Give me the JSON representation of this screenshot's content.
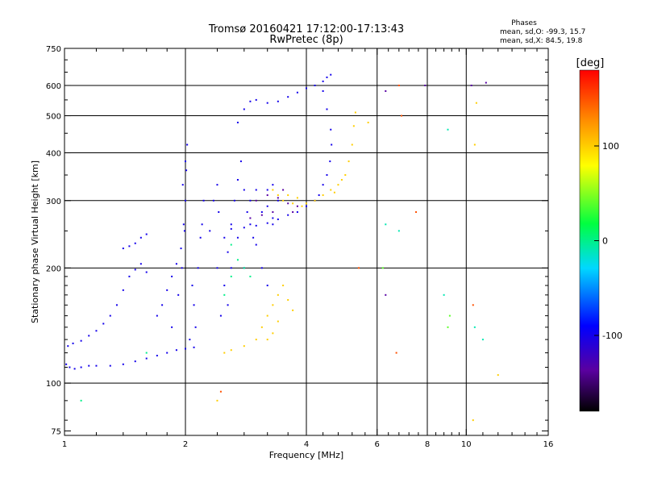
{
  "chart_data": {
    "type": "scatter",
    "title_line1": "Tromsø 20160421 17:12:00-17:13:43",
    "title_line2": "RwPretec (8p)",
    "info": {
      "heading": "Phases",
      "line_o": "mean, sd,O: -99.3, 15.7",
      "line_x": "mean, sd,X:  84.5, 19.8"
    },
    "xlabel": "Frequency [MHz]",
    "ylabel": "Stationary phase Virtual Height [km]",
    "x_scale": "log",
    "y_scale": "log",
    "xlim": [
      1,
      16
    ],
    "ylim": [
      73,
      750
    ],
    "x_ticks": [
      {
        "v": 1,
        "label": "1"
      },
      {
        "v": 2,
        "label": "2"
      },
      {
        "v": 4,
        "label": "4"
      },
      {
        "v": 6,
        "label": "6"
      },
      {
        "v": 8,
        "label": "8"
      },
      {
        "v": 10,
        "label": "10"
      },
      {
        "v": 16,
        "label": "16"
      }
    ],
    "x_minor_ticks": [
      1.2,
      1.4,
      1.6,
      1.8,
      2.4,
      2.8,
      3.2,
      3.6,
      4.4,
      4.8,
      5.2,
      5.6,
      6.4,
      6.8,
      7.2,
      7.6,
      8.4,
      8.8,
      9.2,
      9.6,
      11,
      12,
      13,
      14,
      15
    ],
    "x_grid": [
      2,
      4,
      6,
      8,
      10
    ],
    "y_ticks": [
      {
        "v": 75,
        "label": "75"
      },
      {
        "v": 100,
        "label": "100"
      },
      {
        "v": 200,
        "label": "200"
      },
      {
        "v": 300,
        "label": "300"
      },
      {
        "v": 400,
        "label": "400"
      },
      {
        "v": 500,
        "label": "500"
      },
      {
        "v": 600,
        "label": "600"
      },
      {
        "v": 750,
        "label": "750"
      }
    ],
    "y_minor_ticks": [
      80,
      90,
      110,
      120,
      130,
      140,
      150,
      160,
      170,
      180,
      190,
      250,
      350,
      450,
      550,
      650,
      700
    ],
    "y_grid": [
      100,
      200,
      300,
      400,
      500,
      600
    ],
    "colorbar": {
      "label": "[deg]",
      "range": [
        -180,
        180
      ],
      "ticks": [
        {
          "v": 100,
          "label": "100"
        },
        {
          "v": 0,
          "label": "0"
        },
        {
          "v": -100,
          "label": "-100"
        }
      ]
    },
    "series": [
      {
        "phase": -100,
        "points": [
          [
            1.01,
            112
          ],
          [
            1.03,
            110
          ],
          [
            1.06,
            109
          ],
          [
            1.1,
            110
          ],
          [
            1.15,
            111
          ],
          [
            1.2,
            111
          ],
          [
            1.3,
            111
          ],
          [
            1.4,
            112
          ],
          [
            1.5,
            114
          ],
          [
            1.6,
            116
          ],
          [
            1.7,
            118
          ],
          [
            1.8,
            120
          ],
          [
            1.9,
            122
          ],
          [
            2.0,
            123
          ],
          [
            2.1,
            124
          ],
          [
            1.02,
            125
          ],
          [
            1.05,
            127
          ],
          [
            1.1,
            129
          ],
          [
            1.15,
            133
          ],
          [
            1.2,
            137
          ],
          [
            1.25,
            143
          ],
          [
            1.3,
            150
          ],
          [
            1.35,
            160
          ],
          [
            1.4,
            175
          ],
          [
            1.45,
            190
          ],
          [
            1.5,
            198
          ],
          [
            1.55,
            205
          ],
          [
            1.6,
            195
          ],
          [
            1.4,
            225
          ],
          [
            1.45,
            228
          ],
          [
            1.5,
            232
          ],
          [
            1.55,
            240
          ],
          [
            1.6,
            245
          ],
          [
            1.7,
            150
          ],
          [
            1.75,
            160
          ],
          [
            1.8,
            175
          ],
          [
            1.85,
            190
          ],
          [
            1.9,
            205
          ],
          [
            1.95,
            225
          ],
          [
            1.98,
            260
          ],
          [
            2.0,
            300
          ],
          [
            2.01,
            360
          ],
          [
            2.02,
            420
          ],
          [
            2.0,
            380
          ],
          [
            1.97,
            330
          ],
          [
            1.99,
            250
          ],
          [
            1.96,
            200
          ],
          [
            1.92,
            170
          ],
          [
            1.85,
            140
          ],
          [
            2.05,
            130
          ],
          [
            2.1,
            160
          ],
          [
            2.15,
            200
          ],
          [
            2.2,
            260
          ],
          [
            2.22,
            300
          ],
          [
            2.18,
            240
          ],
          [
            2.08,
            180
          ],
          [
            2.12,
            140
          ],
          [
            2.5,
            180
          ],
          [
            2.55,
            220
          ],
          [
            2.6,
            260
          ],
          [
            2.65,
            300
          ],
          [
            2.7,
            340
          ],
          [
            2.75,
            380
          ],
          [
            2.8,
            320
          ],
          [
            2.85,
            280
          ],
          [
            2.9,
            260
          ],
          [
            2.95,
            240
          ],
          [
            3.0,
            230
          ],
          [
            3.1,
            200
          ],
          [
            3.2,
            180
          ],
          [
            2.6,
            200
          ],
          [
            2.7,
            240
          ],
          [
            2.8,
            200
          ],
          [
            2.9,
            300
          ],
          [
            3.0,
            320
          ],
          [
            3.1,
            280
          ],
          [
            3.2,
            290
          ],
          [
            3.3,
            270
          ],
          [
            2.5,
            240
          ],
          [
            2.55,
            160
          ],
          [
            2.7,
            480
          ],
          [
            2.8,
            520
          ],
          [
            2.9,
            545
          ],
          [
            3.0,
            550
          ],
          [
            3.2,
            540
          ],
          [
            3.4,
            545
          ],
          [
            3.6,
            560
          ],
          [
            3.8,
            575
          ],
          [
            4.0,
            590
          ],
          [
            4.2,
            600
          ],
          [
            4.4,
            615
          ],
          [
            4.5,
            630
          ],
          [
            4.6,
            640
          ],
          [
            4.4,
            580
          ],
          [
            4.5,
            520
          ],
          [
            4.6,
            460
          ],
          [
            4.62,
            420
          ],
          [
            4.58,
            380
          ],
          [
            4.5,
            350
          ],
          [
            4.4,
            330
          ],
          [
            4.3,
            310
          ],
          [
            4.2,
            300
          ],
          [
            4.0,
            290
          ],
          [
            3.8,
            280
          ],
          [
            3.6,
            275
          ],
          [
            3.4,
            268
          ],
          [
            3.2,
            262
          ],
          [
            3.0,
            258
          ],
          [
            2.8,
            255
          ],
          [
            2.6,
            253
          ],
          [
            3.2,
            320
          ],
          [
            3.3,
            330
          ],
          [
            3.4,
            300
          ],
          [
            3.3,
            260
          ],
          [
            2.4,
            200
          ],
          [
            2.45,
            150
          ],
          [
            2.3,
            250
          ],
          [
            2.35,
            300
          ],
          [
            2.4,
            330
          ],
          [
            2.42,
            280
          ]
        ]
      },
      {
        "phase": -135,
        "points": [
          [
            3.0,
            300
          ],
          [
            3.2,
            310
          ],
          [
            3.4,
            305
          ],
          [
            3.6,
            295
          ],
          [
            3.8,
            290
          ],
          [
            3.5,
            320
          ],
          [
            3.3,
            280
          ],
          [
            3.1,
            275
          ],
          [
            2.9,
            270
          ],
          [
            3.7,
            280
          ],
          [
            6.3,
            580
          ],
          [
            7.9,
            600
          ],
          [
            10.3,
            600
          ],
          [
            11.2,
            610
          ],
          [
            6.3,
            170
          ]
        ]
      },
      {
        "phase": 0,
        "points": [
          [
            2.6,
            230
          ],
          [
            2.7,
            210
          ],
          [
            2.8,
            200
          ],
          [
            2.9,
            190
          ],
          [
            2.6,
            190
          ],
          [
            2.5,
            170
          ],
          [
            1.1,
            90
          ],
          [
            1.6,
            120
          ]
        ]
      },
      {
        "phase": 100,
        "points": [
          [
            3.1,
            140
          ],
          [
            3.2,
            150
          ],
          [
            3.3,
            160
          ],
          [
            3.4,
            170
          ],
          [
            3.5,
            180
          ],
          [
            3.6,
            165
          ],
          [
            3.7,
            155
          ],
          [
            3.4,
            145
          ],
          [
            3.3,
            135
          ],
          [
            3.2,
            130
          ],
          [
            3.0,
            130
          ],
          [
            2.8,
            125
          ],
          [
            2.6,
            122
          ],
          [
            2.5,
            120
          ],
          [
            3.5,
            300
          ],
          [
            3.6,
            310
          ],
          [
            3.8,
            305
          ],
          [
            4.0,
            295
          ],
          [
            4.2,
            300
          ],
          [
            4.4,
            310
          ],
          [
            4.6,
            320
          ],
          [
            4.8,
            330
          ],
          [
            5.0,
            350
          ],
          [
            5.1,
            380
          ],
          [
            5.2,
            420
          ],
          [
            5.25,
            470
          ],
          [
            5.3,
            510
          ],
          [
            4.9,
            340
          ],
          [
            4.7,
            315
          ],
          [
            3.9,
            290
          ],
          [
            3.7,
            295
          ],
          [
            3.4,
            310
          ],
          [
            3.3,
            320
          ],
          [
            2.4,
            90
          ],
          [
            5.7,
            480
          ],
          [
            10.5,
            420
          ],
          [
            10.6,
            540
          ],
          [
            10.4,
            80
          ],
          [
            12.0,
            105
          ]
        ]
      },
      {
        "phase": 150,
        "points": [
          [
            2.45,
            95
          ],
          [
            5.4,
            200
          ],
          [
            6.7,
            120
          ],
          [
            6.8,
            600
          ],
          [
            7.5,
            280
          ],
          [
            10.4,
            160
          ],
          [
            6.9,
            500
          ]
        ]
      },
      {
        "phase": -10,
        "points": [
          [
            6.3,
            260
          ],
          [
            6.8,
            250
          ],
          [
            9.0,
            460
          ],
          [
            8.8,
            170
          ],
          [
            10.5,
            140
          ],
          [
            11.0,
            130
          ]
        ]
      },
      {
        "phase": 40,
        "points": [
          [
            6.2,
            200
          ],
          [
            9.1,
            150
          ],
          [
            9.0,
            140
          ]
        ]
      }
    ]
  }
}
